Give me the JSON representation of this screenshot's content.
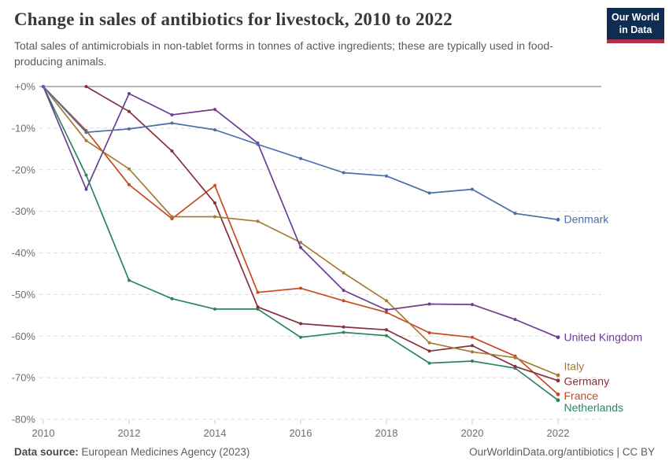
{
  "header": {
    "title": "Change in sales of antibiotics for livestock, 2010 to 2022",
    "subtitle": "Total sales of antimicrobials in non-tablet forms in tonnes of active ingredients; these are typically used in food-producing animals.",
    "logo_line1": "Our World",
    "logo_line2": "in Data"
  },
  "footer": {
    "source_label": "Data source:",
    "source_value": " European Medicines Agency (2023)",
    "credit": "OurWorldinData.org/antibiotics | CC BY"
  },
  "colors": {
    "zero_line": "#ababab",
    "gridline": "#dcdcdc",
    "axis_text": "#6e6e6e",
    "logo_bg": "#0e2d51",
    "logo_stripe": "#b0304c"
  },
  "chart_data": {
    "type": "line",
    "title": "Change in sales of antibiotics for livestock, 2010 to 2022",
    "x": [
      2010,
      2011,
      2012,
      2013,
      2014,
      2015,
      2016,
      2017,
      2018,
      2019,
      2020,
      2021,
      2022
    ],
    "x_tick_labels": [
      "2010",
      "2012",
      "2014",
      "2016",
      "2018",
      "2020",
      "2022"
    ],
    "y_tick_labels": [
      "+0%",
      "-10%",
      "-20%",
      "-30%",
      "-40%",
      "-50%",
      "-60%",
      "-70%",
      "-80%"
    ],
    "ylim": [
      -80,
      0
    ],
    "grid": "horizontal-dashed",
    "legend_position": "labels-at-line-ends-right",
    "series": [
      {
        "name": "Denmark",
        "color": "#4a6daa",
        "label_dy": 0,
        "values": [
          0,
          -11.0,
          -10.2,
          -8.8,
          -10.4,
          -13.9,
          -17.3,
          -20.7,
          -21.5,
          -25.6,
          -24.7,
          -30.5,
          -32.0
        ]
      },
      {
        "name": "United Kingdom",
        "color": "#6d3e91",
        "label_dy": 0,
        "values": [
          0,
          -24.7,
          -1.7,
          -6.8,
          -5.5,
          -13.6,
          -38.7,
          -49.0,
          -53.7,
          -52.3,
          -52.4,
          -56.0,
          -60.3
        ]
      },
      {
        "name": "Italy",
        "color": "#a67b33",
        "label_dy": -11,
        "values": [
          0,
          -13.0,
          -19.8,
          -31.3,
          -31.3,
          -32.4,
          -37.5,
          -44.8,
          -51.5,
          -61.6,
          -63.8,
          -65.2,
          -69.4
        ]
      },
      {
        "name": "Germany",
        "color": "#883039",
        "label_dy": 1,
        "values": [
          null,
          0,
          -6.0,
          -15.5,
          -28.0,
          -53.0,
          -57.0,
          -57.8,
          -58.5,
          -63.6,
          -62.3,
          -67.3,
          -70.7
        ]
      },
      {
        "name": "France",
        "color": "#c84a21",
        "label_dy": 2,
        "values": [
          0,
          -10.6,
          -23.6,
          -31.8,
          -23.8,
          -49.5,
          -48.5,
          -51.5,
          -54.3,
          -59.2,
          -60.3,
          -64.8,
          -74.0
        ]
      },
      {
        "name": "Netherlands",
        "color": "#2c8465",
        "label_dy": 10,
        "values": [
          0,
          -21.3,
          -46.6,
          -51.0,
          -53.5,
          -53.5,
          -60.3,
          -59.1,
          -59.9,
          -66.5,
          -66.0,
          -67.7,
          -75.4
        ]
      }
    ]
  }
}
